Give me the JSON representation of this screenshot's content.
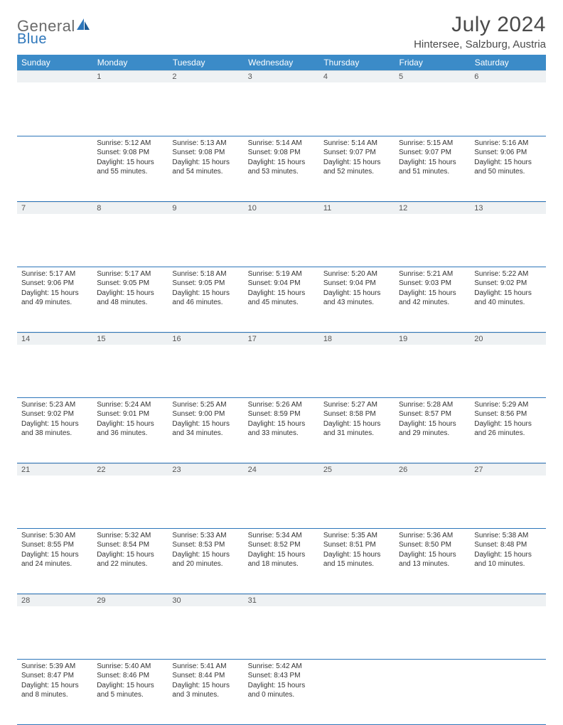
{
  "logo": {
    "word1": "General",
    "word2": "Blue"
  },
  "title": "July 2024",
  "location": "Hintersee, Salzburg, Austria",
  "colors": {
    "header_bg": "#3b8bc8",
    "header_text": "#ffffff",
    "daynum_bg": "#eef1f3",
    "cell_border": "#2d76ba",
    "logo_gray": "#6a6a6a",
    "logo_blue": "#2d76ba"
  },
  "columns": [
    "Sunday",
    "Monday",
    "Tuesday",
    "Wednesday",
    "Thursday",
    "Friday",
    "Saturday"
  ],
  "weeks": [
    [
      null,
      {
        "n": "1",
        "sr": "5:12 AM",
        "ss": "9:08 PM",
        "d": "15 hours and 55 minutes."
      },
      {
        "n": "2",
        "sr": "5:13 AM",
        "ss": "9:08 PM",
        "d": "15 hours and 54 minutes."
      },
      {
        "n": "3",
        "sr": "5:14 AM",
        "ss": "9:08 PM",
        "d": "15 hours and 53 minutes."
      },
      {
        "n": "4",
        "sr": "5:14 AM",
        "ss": "9:07 PM",
        "d": "15 hours and 52 minutes."
      },
      {
        "n": "5",
        "sr": "5:15 AM",
        "ss": "9:07 PM",
        "d": "15 hours and 51 minutes."
      },
      {
        "n": "6",
        "sr": "5:16 AM",
        "ss": "9:06 PM",
        "d": "15 hours and 50 minutes."
      }
    ],
    [
      {
        "n": "7",
        "sr": "5:17 AM",
        "ss": "9:06 PM",
        "d": "15 hours and 49 minutes."
      },
      {
        "n": "8",
        "sr": "5:17 AM",
        "ss": "9:05 PM",
        "d": "15 hours and 48 minutes."
      },
      {
        "n": "9",
        "sr": "5:18 AM",
        "ss": "9:05 PM",
        "d": "15 hours and 46 minutes."
      },
      {
        "n": "10",
        "sr": "5:19 AM",
        "ss": "9:04 PM",
        "d": "15 hours and 45 minutes."
      },
      {
        "n": "11",
        "sr": "5:20 AM",
        "ss": "9:04 PM",
        "d": "15 hours and 43 minutes."
      },
      {
        "n": "12",
        "sr": "5:21 AM",
        "ss": "9:03 PM",
        "d": "15 hours and 42 minutes."
      },
      {
        "n": "13",
        "sr": "5:22 AM",
        "ss": "9:02 PM",
        "d": "15 hours and 40 minutes."
      }
    ],
    [
      {
        "n": "14",
        "sr": "5:23 AM",
        "ss": "9:02 PM",
        "d": "15 hours and 38 minutes."
      },
      {
        "n": "15",
        "sr": "5:24 AM",
        "ss": "9:01 PM",
        "d": "15 hours and 36 minutes."
      },
      {
        "n": "16",
        "sr": "5:25 AM",
        "ss": "9:00 PM",
        "d": "15 hours and 34 minutes."
      },
      {
        "n": "17",
        "sr": "5:26 AM",
        "ss": "8:59 PM",
        "d": "15 hours and 33 minutes."
      },
      {
        "n": "18",
        "sr": "5:27 AM",
        "ss": "8:58 PM",
        "d": "15 hours and 31 minutes."
      },
      {
        "n": "19",
        "sr": "5:28 AM",
        "ss": "8:57 PM",
        "d": "15 hours and 29 minutes."
      },
      {
        "n": "20",
        "sr": "5:29 AM",
        "ss": "8:56 PM",
        "d": "15 hours and 26 minutes."
      }
    ],
    [
      {
        "n": "21",
        "sr": "5:30 AM",
        "ss": "8:55 PM",
        "d": "15 hours and 24 minutes."
      },
      {
        "n": "22",
        "sr": "5:32 AM",
        "ss": "8:54 PM",
        "d": "15 hours and 22 minutes."
      },
      {
        "n": "23",
        "sr": "5:33 AM",
        "ss": "8:53 PM",
        "d": "15 hours and 20 minutes."
      },
      {
        "n": "24",
        "sr": "5:34 AM",
        "ss": "8:52 PM",
        "d": "15 hours and 18 minutes."
      },
      {
        "n": "25",
        "sr": "5:35 AM",
        "ss": "8:51 PM",
        "d": "15 hours and 15 minutes."
      },
      {
        "n": "26",
        "sr": "5:36 AM",
        "ss": "8:50 PM",
        "d": "15 hours and 13 minutes."
      },
      {
        "n": "27",
        "sr": "5:38 AM",
        "ss": "8:48 PM",
        "d": "15 hours and 10 minutes."
      }
    ],
    [
      {
        "n": "28",
        "sr": "5:39 AM",
        "ss": "8:47 PM",
        "d": "15 hours and 8 minutes."
      },
      {
        "n": "29",
        "sr": "5:40 AM",
        "ss": "8:46 PM",
        "d": "15 hours and 5 minutes."
      },
      {
        "n": "30",
        "sr": "5:41 AM",
        "ss": "8:44 PM",
        "d": "15 hours and 3 minutes."
      },
      {
        "n": "31",
        "sr": "5:42 AM",
        "ss": "8:43 PM",
        "d": "15 hours and 0 minutes."
      },
      null,
      null,
      null
    ]
  ],
  "labels": {
    "sunrise": "Sunrise:",
    "sunset": "Sunset:",
    "daylight": "Daylight:"
  }
}
